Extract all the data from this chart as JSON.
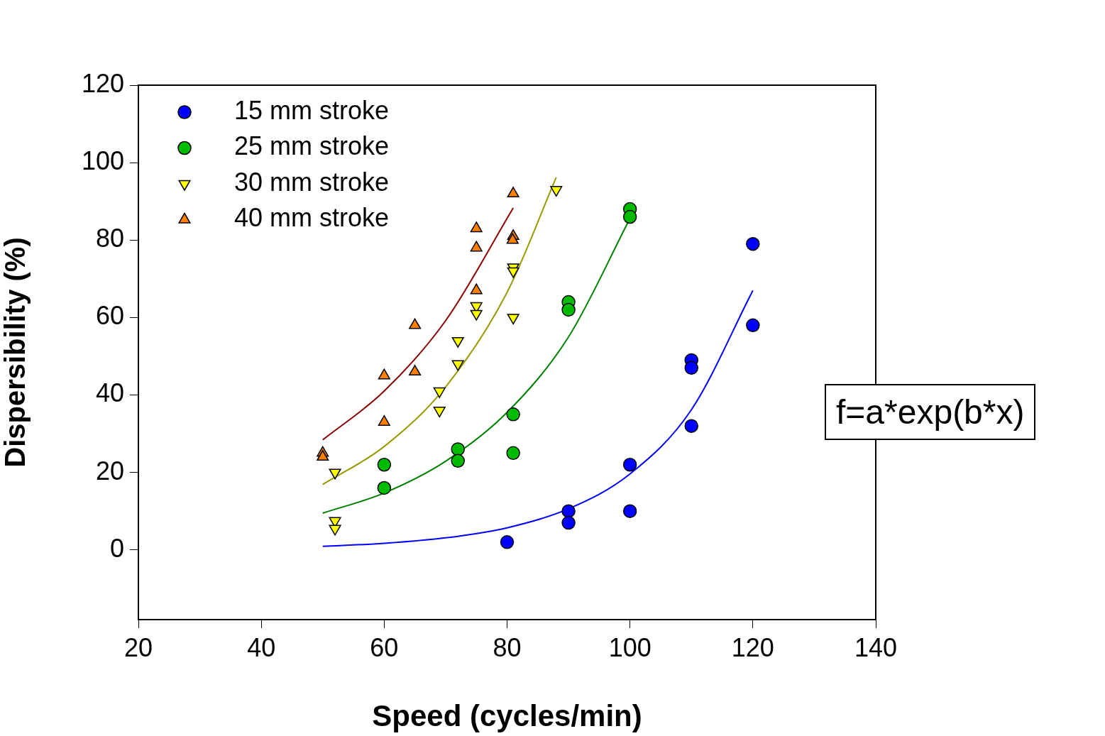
{
  "chart_data": {
    "type": "scatter",
    "xlabel": "Speed (cycles/min)",
    "ylabel": "Dispersibility (%)",
    "xlim": [
      20,
      140
    ],
    "xticks": [
      20,
      40,
      60,
      80,
      100,
      120,
      140
    ],
    "ylim": [
      -18,
      120
    ],
    "yticks": [
      0,
      20,
      40,
      60,
      80,
      100,
      120
    ],
    "grid": false,
    "legend": "top left",
    "annotations": [
      "f=a*exp(b*x)"
    ],
    "series": [
      {
        "name": "15 mm stroke",
        "color": "#0000ff",
        "marker": "circle",
        "x": [
          80,
          90,
          90,
          100,
          100,
          110,
          110,
          110,
          120,
          120
        ],
        "values": [
          2,
          10,
          7,
          22,
          10,
          49,
          47,
          32,
          79,
          58
        ]
      },
      {
        "name": "25 mm stroke",
        "color": "#00bb00",
        "marker": "circle",
        "x": [
          60,
          60,
          72,
          72,
          81,
          81,
          90,
          90,
          100,
          100
        ],
        "values": [
          22,
          16,
          26,
          23,
          35,
          25,
          64,
          62,
          88,
          86
        ]
      },
      {
        "name": "30 mm stroke",
        "color": "#ffff00",
        "marker": "triangle_down",
        "x": [
          52,
          52,
          52,
          69,
          69,
          72,
          72,
          75,
          75,
          81,
          81,
          81,
          88
        ],
        "values": [
          20,
          7.5,
          5.5,
          41,
          36,
          54,
          48,
          63,
          61,
          73,
          72,
          60,
          93
        ]
      },
      {
        "name": "40 mm stroke",
        "color": "#ff8000",
        "marker": "triangle",
        "x": [
          50,
          50,
          60,
          60,
          65,
          65,
          75,
          75,
          75,
          81,
          81,
          80.9
        ],
        "values": [
          25,
          24,
          45,
          33,
          58,
          46,
          83,
          78,
          67,
          92,
          81,
          80
        ]
      },
      {
        "type": "line",
        "color": "#0000ff",
        "marker": "none",
        "x": [
          50,
          60,
          70,
          80,
          90,
          100,
          110,
          120
        ],
        "values": [
          0.9,
          1.7,
          3.1,
          5.7,
          10.6,
          19.6,
          36.2,
          67
        ]
      },
      {
        "type": "line",
        "color": "#008000",
        "marker": "none",
        "x": [
          50,
          60,
          70,
          80,
          90,
          100
        ],
        "values": [
          9.5,
          14.7,
          22.9,
          35.5,
          55,
          85.6
        ]
      },
      {
        "type": "line",
        "color": "#999900",
        "marker": "none",
        "x": [
          50,
          60,
          70,
          80,
          88
        ],
        "values": [
          16.9,
          26.7,
          42.1,
          66.5,
          96.2
        ]
      },
      {
        "type": "line",
        "color": "#8b0000",
        "marker": "none",
        "x": [
          50,
          60,
          70,
          81
        ],
        "values": [
          28.4,
          41,
          59.2,
          88.3
        ]
      }
    ]
  }
}
